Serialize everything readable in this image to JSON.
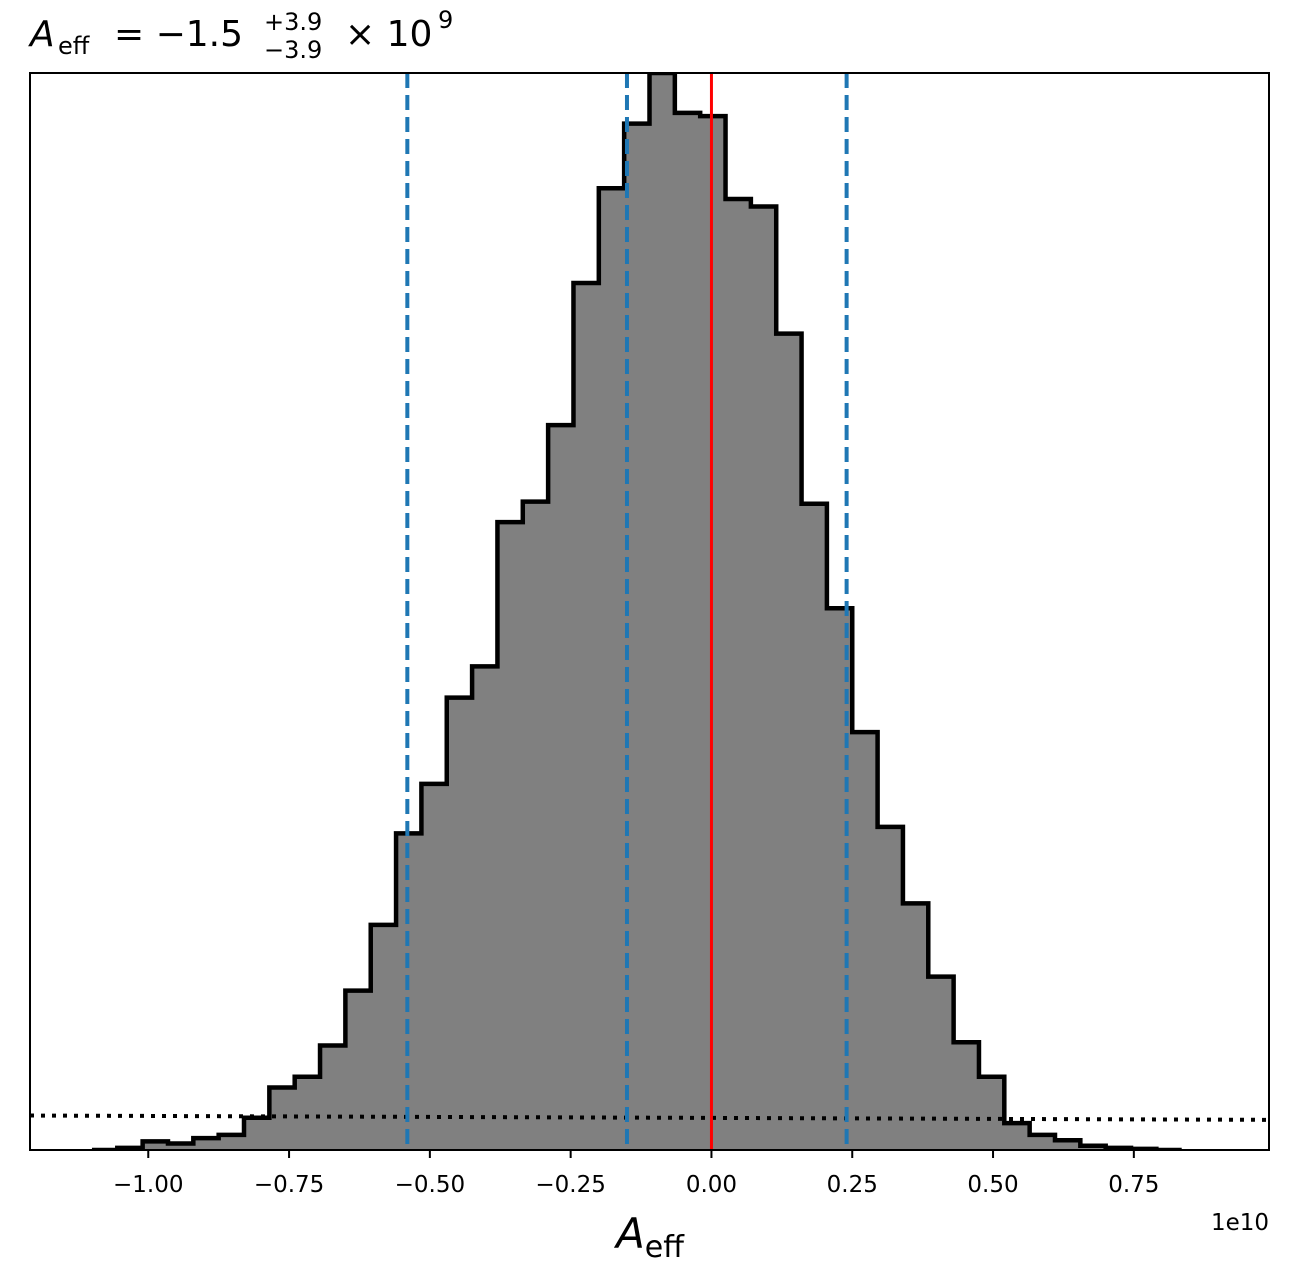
{
  "chart_data": {
    "type": "bar",
    "title": {
      "var": "A",
      "var_sub": "eff",
      "equals": "= −1.5",
      "sup": "+3.9",
      "sub": "−3.9",
      "times": "× 10",
      "exp": "9"
    },
    "xlabel": {
      "var": "A",
      "sub": "eff"
    },
    "x_offset_label": "1e10",
    "xlim": [
      -12100000000.0,
      9900000000.0
    ],
    "ylim": [
      0,
      1.0
    ],
    "x_ticks": [
      -10000000000.0,
      -7500000000.0,
      -5000000000.0,
      -2500000000.0,
      0,
      2500000000.0,
      5000000000.0,
      7500000000.0
    ],
    "x_tick_labels": [
      "−1.00",
      "−0.75",
      "−0.50",
      "−0.25",
      "0.00",
      "0.25",
      "0.50",
      "0.75"
    ],
    "y_ticks_shown": false,
    "grid": false,
    "histogram": {
      "bin_edges": [
        -11000000000.0,
        -10550000000.0,
        -10100000000.0,
        -9650000000.0,
        -9200000000.0,
        -8750000000.0,
        -8300000000.0,
        -7850000000.0,
        -7400000000.0,
        -6950000000.0,
        -6500000000.0,
        -6050000000.0,
        -5600000000.0,
        -5150000000.0,
        -4700000000.0,
        -4250000000.0,
        -3800000000.0,
        -3350000000.0,
        -2900000000.0,
        -2450000000.0,
        -2000000000.0,
        -1550000000.0,
        -1100000000.0,
        -650000000.0,
        -200000000.0,
        250000000.0,
        700000000.0,
        1150000000.0,
        1600000000.0,
        2050000000.0,
        2500000000.0,
        2950000000.0,
        3400000000.0,
        3850000000.0,
        4300000000.0,
        4750000000.0,
        5200000000.0,
        5650000000.0,
        6100000000.0,
        6550000000.0,
        7000000000.0,
        7450000000.0,
        7900000000.0,
        8350000000.0
      ],
      "heights": [
        0.0,
        0.002,
        0.008,
        0.006,
        0.011,
        0.014,
        0.03,
        0.058,
        0.068,
        0.097,
        0.148,
        0.209,
        0.294,
        0.34,
        0.42,
        0.449,
        0.583,
        0.602,
        0.673,
        0.805,
        0.893,
        0.953,
        1.0,
        0.963,
        0.96,
        0.883,
        0.876,
        0.758,
        0.6,
        0.503,
        0.388,
        0.3,
        0.229,
        0.161,
        0.1,
        0.068,
        0.025,
        0.014,
        0.009,
        0.004,
        0.002,
        0.001,
        0.0
      ],
      "fill": "#808080",
      "edge": "#000000"
    },
    "prior": {
      "style": "dotted",
      "color": "#000000",
      "y_left": 0.032,
      "y_right": 0.028
    },
    "quantile_lines": {
      "values": [
        -5400000000.0,
        -1500000000.0,
        2400000000.0
      ],
      "color": "#1f77b4",
      "style": "dashed"
    },
    "truth_line": {
      "value": 0.0,
      "color": "#ff0000"
    }
  }
}
